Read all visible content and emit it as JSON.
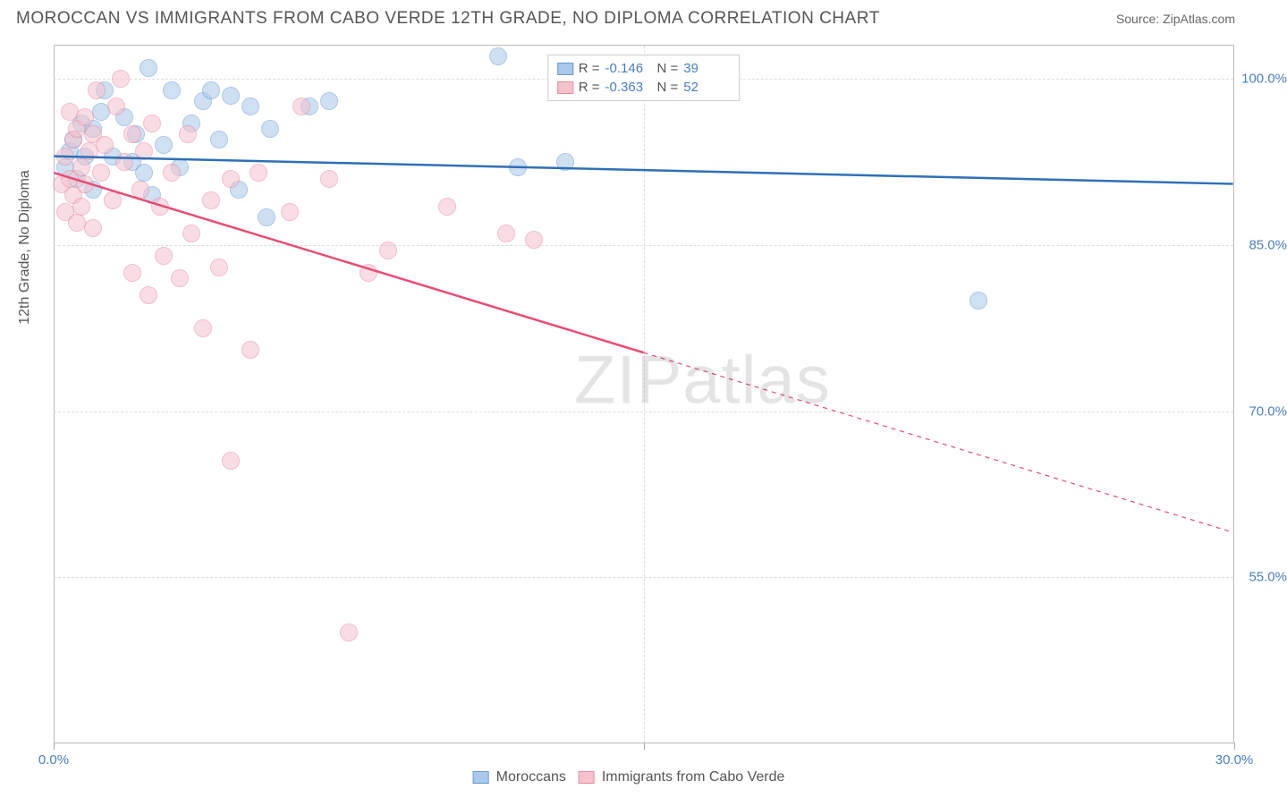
{
  "title": "MOROCCAN VS IMMIGRANTS FROM CABO VERDE 12TH GRADE, NO DIPLOMA CORRELATION CHART",
  "source": "Source: ZipAtlas.com",
  "watermark": "ZIPatlas",
  "y_axis_title": "12th Grade, No Diploma",
  "chart": {
    "type": "scatter",
    "xlim": [
      0,
      30
    ],
    "ylim": [
      40,
      103
    ],
    "x_ticks": [
      0,
      15,
      30
    ],
    "x_tick_labels": [
      "0.0%",
      "",
      "30.0%"
    ],
    "y_ticks": [
      55,
      70,
      85,
      100
    ],
    "y_tick_labels": [
      "55.0%",
      "70.0%",
      "85.0%",
      "100.0%"
    ],
    "background_color": "#ffffff",
    "grid_color": "#dddddd",
    "axis_color": "#bbbbbb",
    "tick_label_color": "#4a7ebb",
    "series": [
      {
        "name": "Moroccans",
        "label": "Moroccans",
        "color_fill": "#a9c8ea",
        "color_stroke": "#6b9bd1",
        "line_color": "#2f6fb8",
        "R": "-0.146",
        "N": "39",
        "trend": {
          "x1": 0,
          "y1": 93.0,
          "x2": 30,
          "y2": 90.5,
          "solid_until_x": 30
        },
        "points": [
          [
            0.3,
            92.0
          ],
          [
            0.4,
            93.5
          ],
          [
            0.5,
            94.5
          ],
          [
            0.6,
            91.0
          ],
          [
            0.7,
            96.0
          ],
          [
            0.8,
            93.0
          ],
          [
            1.0,
            95.5
          ],
          [
            1.0,
            90.0
          ],
          [
            1.2,
            97.0
          ],
          [
            1.3,
            99.0
          ],
          [
            1.5,
            93.0
          ],
          [
            1.8,
            96.5
          ],
          [
            2.0,
            92.5
          ],
          [
            2.1,
            95.0
          ],
          [
            2.3,
            91.5
          ],
          [
            2.4,
            101.0
          ],
          [
            2.5,
            89.5
          ],
          [
            2.8,
            94.0
          ],
          [
            3.0,
            99.0
          ],
          [
            3.2,
            92.0
          ],
          [
            3.5,
            96.0
          ],
          [
            3.8,
            98.0
          ],
          [
            4.0,
            99.0
          ],
          [
            4.2,
            94.5
          ],
          [
            4.5,
            98.5
          ],
          [
            4.7,
            90.0
          ],
          [
            5.0,
            97.5
          ],
          [
            5.4,
            87.5
          ],
          [
            5.5,
            95.5
          ],
          [
            6.5,
            97.5
          ],
          [
            7.0,
            98.0
          ],
          [
            11.3,
            102.0
          ],
          [
            11.8,
            92.0
          ],
          [
            13.0,
            92.5
          ],
          [
            15.2,
            100.5
          ],
          [
            23.5,
            80.0
          ]
        ]
      },
      {
        "name": "Immigrants from Cabo Verde",
        "label": "Immigrants from Cabo Verde",
        "color_fill": "#f5c2ce",
        "color_stroke": "#e68aa2",
        "line_color": "#e84c77",
        "R": "-0.363",
        "N": "52",
        "trend": {
          "x1": 0,
          "y1": 91.5,
          "x2": 30,
          "y2": 59.0,
          "solid_until_x": 15
        },
        "points": [
          [
            0.2,
            90.5
          ],
          [
            0.3,
            93.0
          ],
          [
            0.3,
            88.0
          ],
          [
            0.4,
            97.0
          ],
          [
            0.4,
            91.0
          ],
          [
            0.5,
            94.5
          ],
          [
            0.5,
            89.5
          ],
          [
            0.6,
            95.5
          ],
          [
            0.6,
            87.0
          ],
          [
            0.7,
            92.0
          ],
          [
            0.7,
            88.5
          ],
          [
            0.8,
            96.5
          ],
          [
            0.8,
            90.5
          ],
          [
            0.9,
            93.5
          ],
          [
            1.0,
            95.0
          ],
          [
            1.0,
            86.5
          ],
          [
            1.1,
            99.0
          ],
          [
            1.2,
            91.5
          ],
          [
            1.3,
            94.0
          ],
          [
            1.5,
            89.0
          ],
          [
            1.6,
            97.5
          ],
          [
            1.7,
            100.0
          ],
          [
            1.8,
            92.5
          ],
          [
            2.0,
            95.0
          ],
          [
            2.0,
            82.5
          ],
          [
            2.2,
            90.0
          ],
          [
            2.3,
            93.5
          ],
          [
            2.4,
            80.5
          ],
          [
            2.5,
            96.0
          ],
          [
            2.7,
            88.5
          ],
          [
            2.8,
            84.0
          ],
          [
            3.0,
            91.5
          ],
          [
            3.2,
            82.0
          ],
          [
            3.4,
            95.0
          ],
          [
            3.5,
            86.0
          ],
          [
            3.8,
            77.5
          ],
          [
            4.0,
            89.0
          ],
          [
            4.2,
            83.0
          ],
          [
            4.5,
            91.0
          ],
          [
            4.5,
            65.5
          ],
          [
            5.0,
            75.5
          ],
          [
            5.2,
            91.5
          ],
          [
            6.0,
            88.0
          ],
          [
            6.3,
            97.5
          ],
          [
            7.0,
            91.0
          ],
          [
            7.5,
            50.0
          ],
          [
            8.0,
            82.5
          ],
          [
            8.5,
            84.5
          ],
          [
            10.0,
            88.5
          ],
          [
            11.5,
            86.0
          ],
          [
            12.2,
            85.5
          ]
        ]
      }
    ]
  },
  "legend_top": {
    "r_label": "R =",
    "n_label": "N ="
  },
  "point_radius": 10,
  "point_opacity": 0.55,
  "line_width": 2.5
}
